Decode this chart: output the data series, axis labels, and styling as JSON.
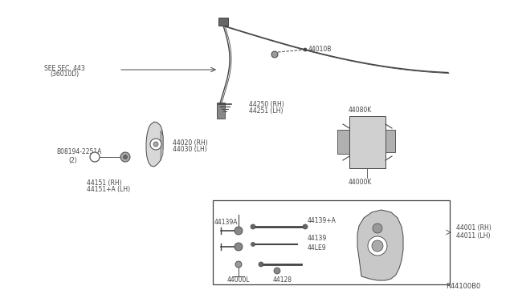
{
  "bg_color": "#ffffff",
  "lc": "#444444",
  "fs": 5.5,
  "diagram_id": "R44100B0",
  "labels": {
    "see_sec": "SEE SEC. 443",
    "see_sec2": "(36010D)",
    "p44010B": "44010B",
    "p44250": "44250 (RH)",
    "p44251": "44251 (LH)",
    "p44080K": "44080K",
    "p44020": "44020 (RH)",
    "p44030": "44030 (LH)",
    "p44000K": "44000K",
    "pB08194": "B08194-2251A",
    "pB_qty": "(2)",
    "p44151": "44151 (RH)",
    "p44151A": "44151+A (LH)",
    "p44139A": "44139A",
    "p44139plus": "44139+A",
    "p44139": "44139",
    "p44LE9": "44LE9",
    "p44000L": "44000L",
    "p44128": "44128",
    "p44001": "44001 (RH)",
    "p44011": "44011 (LH)"
  }
}
